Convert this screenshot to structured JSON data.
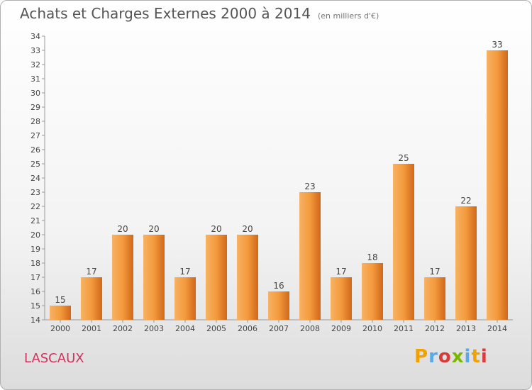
{
  "title": "Achats et Charges Externes 2000 à 2014",
  "unit": "(en milliers d'€)",
  "place": "LASCAUX",
  "logo": {
    "letters": [
      "P",
      "r",
      "o",
      "x",
      "i",
      "t",
      "i"
    ]
  },
  "colors": {
    "bar_top": "#f8b264",
    "bar_bottom": "#d0681b",
    "title": "#555555",
    "place": "#d0345e"
  },
  "chart_data": {
    "type": "bar",
    "categories": [
      "2000",
      "2001",
      "2002",
      "2003",
      "2004",
      "2005",
      "2006",
      "2007",
      "2008",
      "2009",
      "2010",
      "2011",
      "2012",
      "2013",
      "2014"
    ],
    "values": [
      15,
      17,
      20,
      20,
      17,
      20,
      20,
      16,
      23,
      17,
      18,
      25,
      17,
      22,
      33
    ],
    "title": "Achats et Charges Externes 2000 à 2014",
    "xlabel": "",
    "ylabel": "",
    "ylim": [
      14,
      34
    ],
    "yticks": [
      14,
      15,
      16,
      17,
      18,
      19,
      20,
      21,
      22,
      23,
      24,
      25,
      26,
      27,
      28,
      29,
      30,
      31,
      32,
      33,
      34
    ],
    "data_labels": true,
    "grid": false
  }
}
